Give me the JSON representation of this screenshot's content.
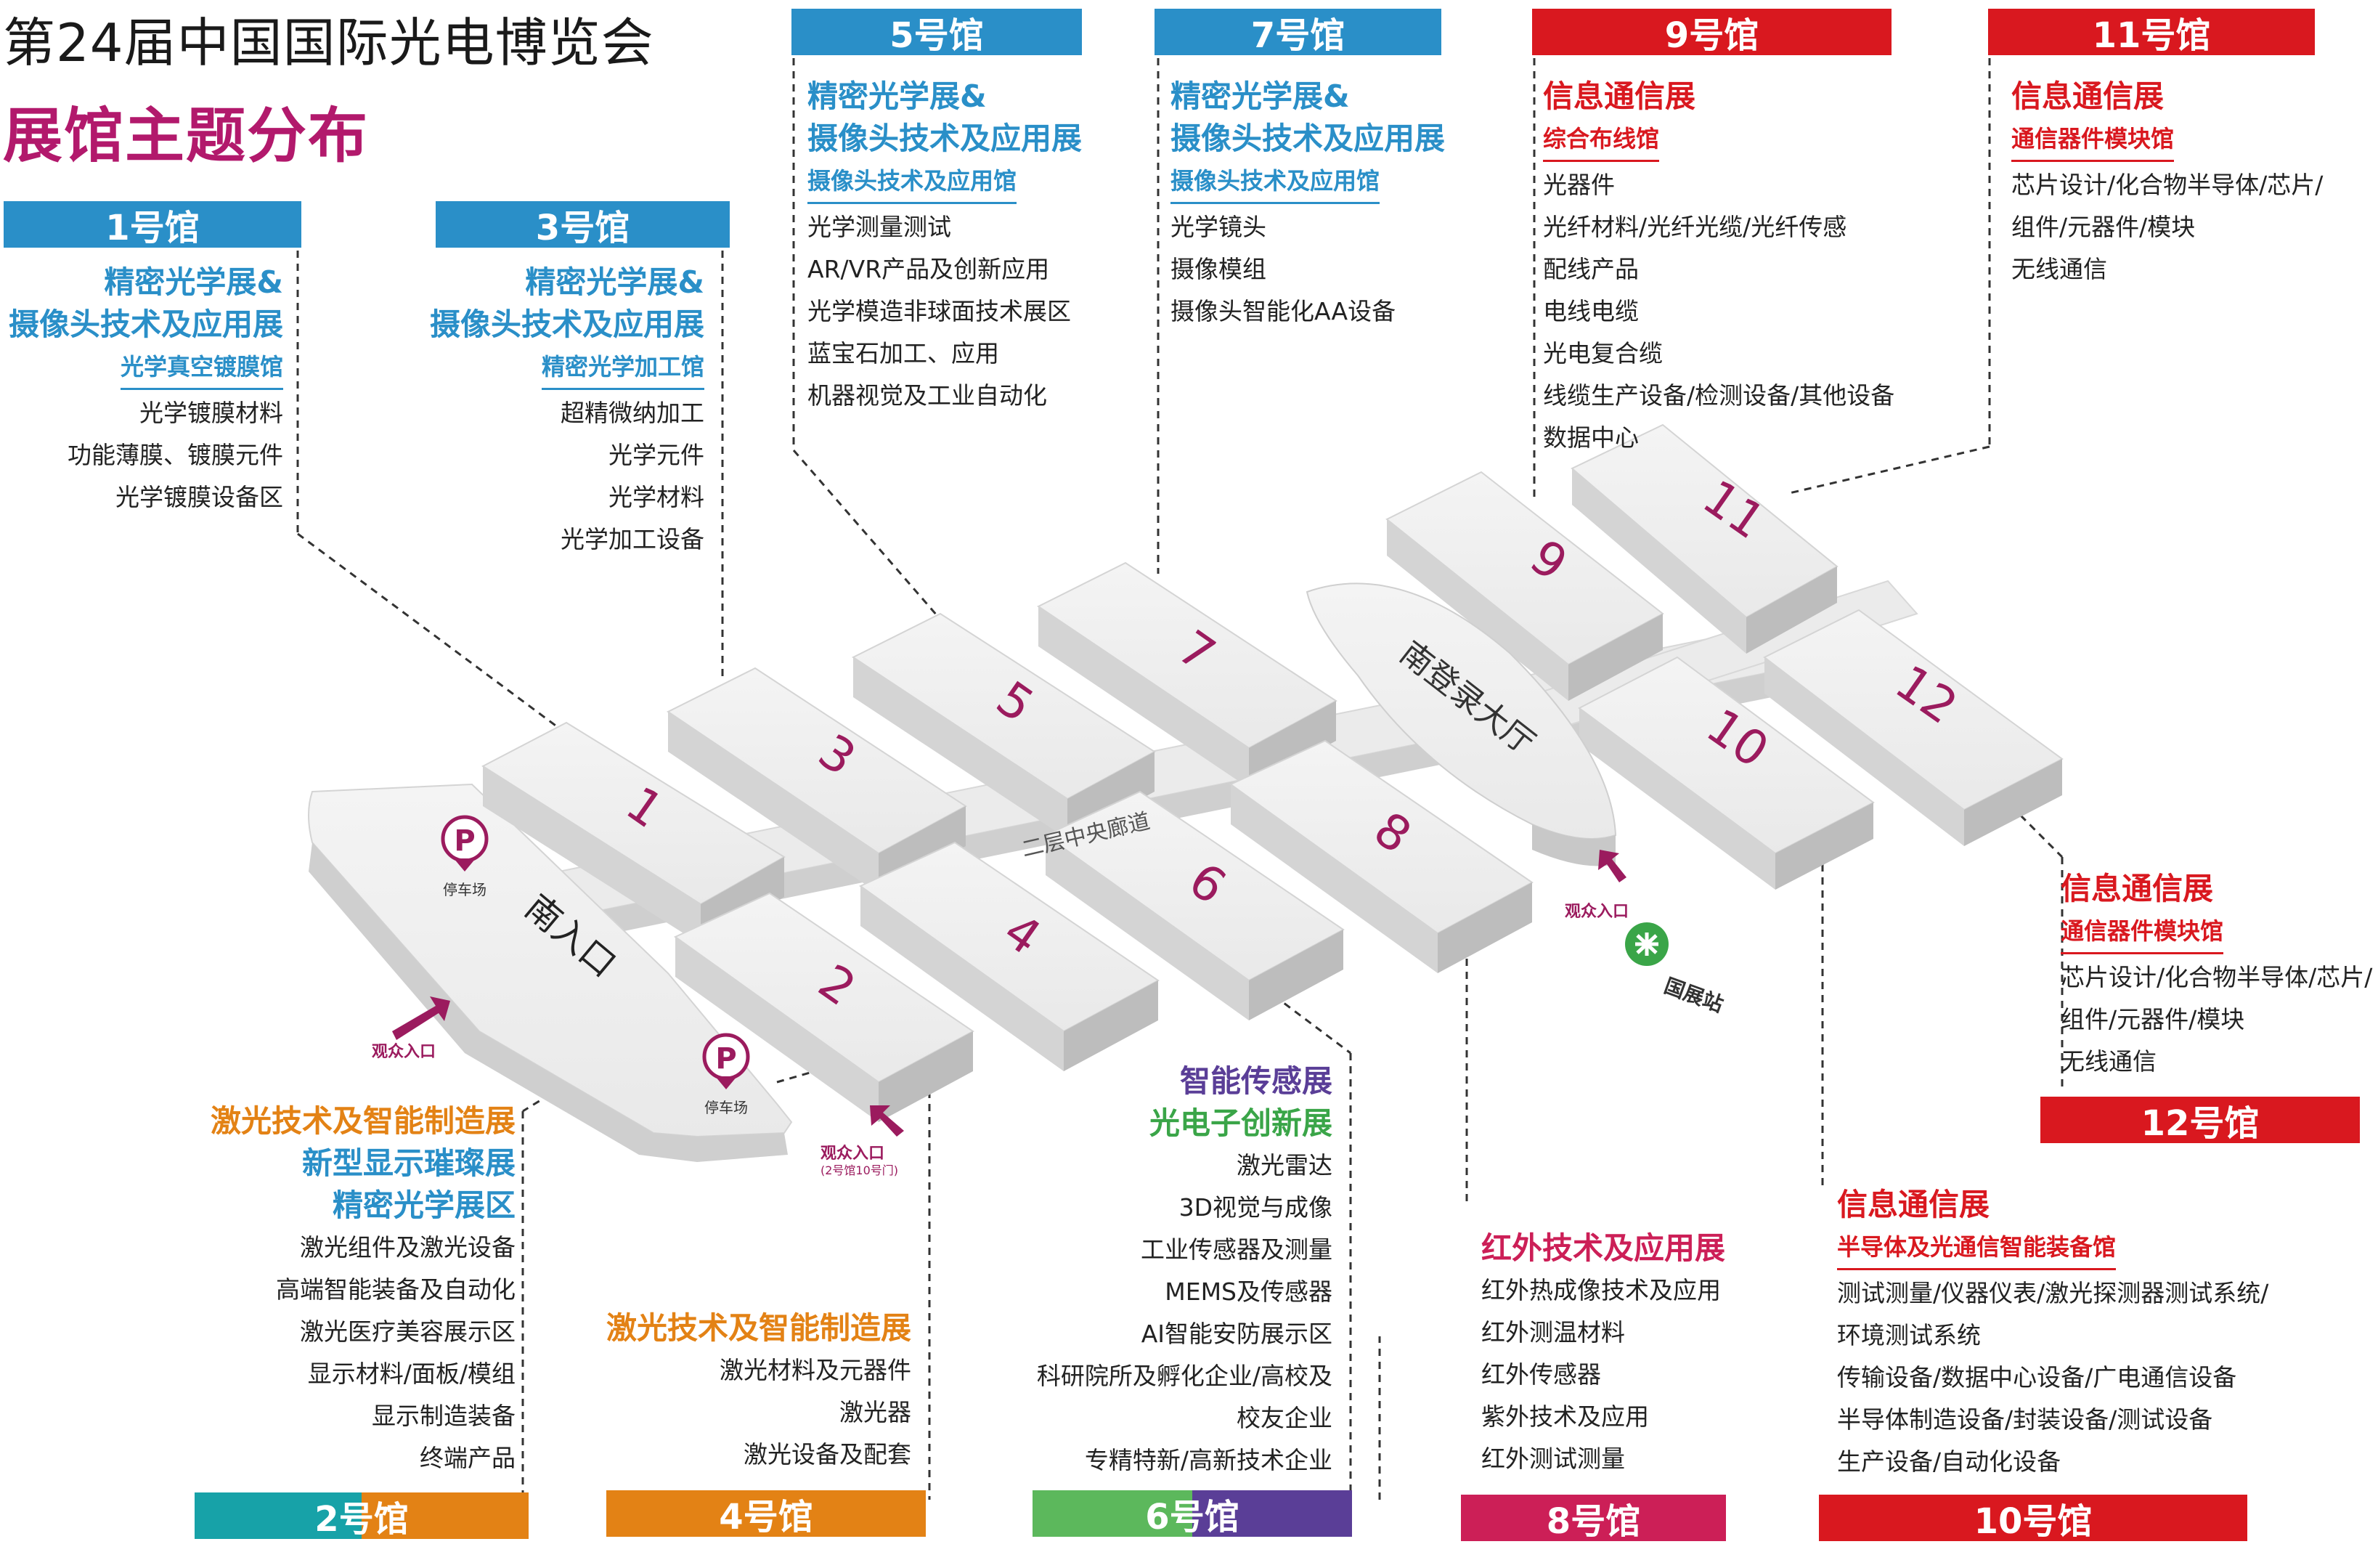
{
  "header": {
    "title": "第24届中国国际光电博览会",
    "subtitle": "展馆主题分布"
  },
  "colors": {
    "blue": "#2a8fc8",
    "red": "#d9181f",
    "orange": "#e38215",
    "purple": "#5a3e97",
    "green": "#5cb85c",
    "teal": "#17a2a8",
    "crimson": "#cc1f57",
    "magenta": "#9b1b5e"
  },
  "halls": {
    "h1": {
      "bar": "1号馆",
      "title": [
        "精密光学展&",
        "摄像头技术及应用展"
      ],
      "sub": "光学真空镀膜馆",
      "items": [
        "光学镀膜材料",
        "功能薄膜、镀膜元件",
        "光学镀膜设备区"
      ]
    },
    "h3": {
      "bar": "3号馆",
      "title": [
        "精密光学展&",
        "摄像头技术及应用展"
      ],
      "sub": "精密光学加工馆",
      "items": [
        "超精微纳加工",
        "光学元件",
        "光学材料",
        "光学加工设备"
      ]
    },
    "h5": {
      "bar": "5号馆",
      "title": [
        "精密光学展&",
        "摄像头技术及应用展"
      ],
      "sub": "摄像头技术及应用馆",
      "items": [
        "光学测量测试",
        "AR/VR产品及创新应用",
        "光学模造非球面技术展区",
        "蓝宝石加工、应用",
        "机器视觉及工业自动化"
      ]
    },
    "h7": {
      "bar": "7号馆",
      "title": [
        "精密光学展&",
        "摄像头技术及应用展"
      ],
      "sub": "摄像头技术及应用馆",
      "items": [
        "光学镜头",
        "摄像模组",
        "摄像头智能化AA设备"
      ]
    },
    "h9": {
      "bar": "9号馆",
      "title": [
        "信息通信展"
      ],
      "sub": "综合布线馆",
      "items": [
        "光器件",
        "光纤材料/光纤光缆/光纤传感",
        "配线产品",
        "电线电缆",
        "光电复合缆",
        "线缆生产设备/检测设备/其他设备",
        "数据中心"
      ]
    },
    "h11": {
      "bar": "11号馆",
      "title": [
        "信息通信展"
      ],
      "sub": "通信器件模块馆",
      "items": [
        "芯片设计/化合物半导体/芯片/",
        "组件/元器件/模块",
        "无线通信"
      ]
    },
    "h12": {
      "bar": "12号馆",
      "title": [
        "信息通信展"
      ],
      "sub": "通信器件模块馆",
      "items": [
        "芯片设计/化合物半导体/芯片/",
        "组件/元器件/模块",
        "无线通信"
      ]
    },
    "h2": {
      "bar": "2号馆",
      "titles": [
        "激光技术及智能制造展",
        "新型显示璀璨展",
        "精密光学展区"
      ],
      "items": [
        "激光组件及激光设备",
        "高端智能装备及自动化",
        "激光医疗美容展示区",
        "显示材料/面板/模组",
        "显示制造装备",
        "终端产品"
      ]
    },
    "h4": {
      "bar": "4号馆",
      "title": "激光技术及智能制造展",
      "items": [
        "激光材料及元器件",
        "激光器",
        "激光设备及配套"
      ]
    },
    "h6": {
      "bar": "6号馆",
      "titles": [
        "智能传感展",
        "光电子创新展"
      ],
      "items": [
        "激光雷达",
        "3D视觉与成像",
        "工业传感器及测量",
        "MEMS及传感器",
        "AI智能安防展示区",
        "科研院所及孵化企业/高校及",
        "校友企业",
        "专精特新/高新技术企业"
      ]
    },
    "h8": {
      "bar": "8号馆",
      "title": "红外技术及应用展",
      "items": [
        "红外热成像技术及应用",
        "红外测温材料",
        "红外传感器",
        "紫外技术及应用",
        "红外测试测量"
      ]
    },
    "h10": {
      "bar": "10号馆",
      "title": "信息通信展",
      "sub": "半导体及光通信智能装备馆",
      "items": [
        "测试测量/仪器仪表/激光探测器测试系统/",
        "环境测试系统",
        "传输设备/数据中心设备/广电通信设备",
        "半导体制造设备/封装设备/测试设备",
        "生产设备/自动化设备"
      ]
    }
  },
  "map": {
    "hall_numbers": [
      "1",
      "2",
      "3",
      "4",
      "5",
      "6",
      "7",
      "8",
      "9",
      "10",
      "11",
      "12"
    ],
    "corridor": "二层中央廊道",
    "lobby": "南登录大厅",
    "south_entrance": "南入口",
    "parking": "停车场",
    "parking_icon": "P",
    "entrance": "观众入口",
    "entrance_note": "(2号馆10号门)",
    "metro_station": "国展站"
  }
}
